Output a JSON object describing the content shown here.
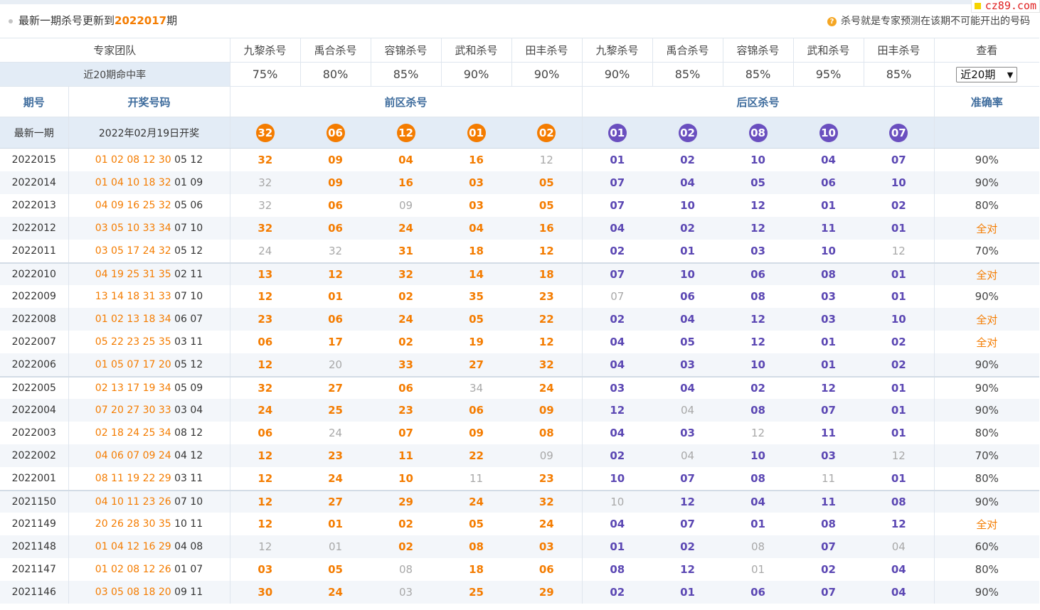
{
  "header": {
    "title_prefix": "最新一期杀号更新到",
    "title_issue": "2022017",
    "title_suffix": "期",
    "hint_icon": "question-icon",
    "hint_icon_glyph": "?",
    "hint": "杀号就是专家预测在该期不可能开出的号码",
    "logo": "cz89.com"
  },
  "expert_row": {
    "label": "专家团队",
    "experts": [
      "九黎杀号",
      "禹合杀号",
      "容锦杀号",
      "武和杀号",
      "田丰杀号",
      "九黎杀号",
      "禹合杀号",
      "容锦杀号",
      "武和杀号",
      "田丰杀号"
    ],
    "view_label": "查看"
  },
  "rate_row": {
    "label": "近20期命中率",
    "rates": [
      "75%",
      "80%",
      "85%",
      "90%",
      "90%",
      "90%",
      "85%",
      "85%",
      "95%",
      "85%"
    ],
    "select_value": "近20期",
    "select_arrow": "▼"
  },
  "section_header": {
    "issue": "期号",
    "draw": "开奖号码",
    "front": "前区杀号",
    "back": "后区杀号",
    "accuracy": "准确率"
  },
  "latest": {
    "label": "最新一期",
    "date": "2022年02月19日开奖",
    "front": [
      "32",
      "06",
      "12",
      "01",
      "02"
    ],
    "back": [
      "01",
      "02",
      "08",
      "10",
      "07"
    ]
  },
  "colors": {
    "front": "#f47c00",
    "back": "#6a4fbf",
    "fail": "#a8a8a8",
    "header_blue": "#3d6b9c"
  },
  "legend": {
    "F": "front-hit",
    "B": "back-hit",
    "x": "miss"
  },
  "rows": [
    {
      "issue": "2022015",
      "front": "01 02 08 12 30",
      "back": "05 12",
      "kills": [
        "32",
        "09",
        "04",
        "16",
        "12",
        "01",
        "02",
        "10",
        "04",
        "07"
      ],
      "status": "FFFFxBBBBB",
      "acc": "90%"
    },
    {
      "issue": "2022014",
      "front": "01 04 10 18 32",
      "back": "01 09",
      "kills": [
        "32",
        "09",
        "16",
        "03",
        "05",
        "07",
        "04",
        "05",
        "06",
        "10"
      ],
      "status": "xFFFFBBBBB",
      "acc": "90%"
    },
    {
      "issue": "2022013",
      "front": "04 09 16 25 32",
      "back": "05 06",
      "kills": [
        "32",
        "06",
        "09",
        "03",
        "05",
        "07",
        "10",
        "12",
        "01",
        "02"
      ],
      "status": "xFxFFBBBBB",
      "acc": "80%"
    },
    {
      "issue": "2022012",
      "front": "03 05 10 33 34",
      "back": "07 10",
      "kills": [
        "32",
        "06",
        "24",
        "04",
        "16",
        "04",
        "02",
        "12",
        "11",
        "01"
      ],
      "status": "FFFFFBBBBB",
      "acc": "全对"
    },
    {
      "issue": "2022011",
      "front": "03 05 17 24 32",
      "back": "05 12",
      "kills": [
        "24",
        "32",
        "31",
        "18",
        "12",
        "02",
        "01",
        "03",
        "10",
        "12"
      ],
      "status": "xxFFFBBBBx",
      "acc": "70%"
    },
    {
      "issue": "2022010",
      "front": "04 19 25 31 35",
      "back": "02 11",
      "kills": [
        "13",
        "12",
        "32",
        "14",
        "18",
        "07",
        "10",
        "06",
        "08",
        "01"
      ],
      "status": "FFFFFBBBBB",
      "acc": "全对"
    },
    {
      "issue": "2022009",
      "front": "13 14 18 31 33",
      "back": "07 10",
      "kills": [
        "12",
        "01",
        "02",
        "35",
        "23",
        "07",
        "06",
        "08",
        "03",
        "01"
      ],
      "status": "FFFFFxBBBB",
      "acc": "90%"
    },
    {
      "issue": "2022008",
      "front": "01 02 13 18 34",
      "back": "06 07",
      "kills": [
        "23",
        "06",
        "24",
        "05",
        "22",
        "02",
        "04",
        "12",
        "03",
        "10"
      ],
      "status": "FFFFFBBBBB",
      "acc": "全对"
    },
    {
      "issue": "2022007",
      "front": "05 22 23 25 35",
      "back": "03 11",
      "kills": [
        "06",
        "17",
        "02",
        "19",
        "12",
        "04",
        "05",
        "12",
        "01",
        "02"
      ],
      "status": "FFFFFBBBBB",
      "acc": "全对"
    },
    {
      "issue": "2022006",
      "front": "01 05 07 17 20",
      "back": "05 12",
      "kills": [
        "12",
        "20",
        "33",
        "27",
        "32",
        "04",
        "03",
        "10",
        "01",
        "02"
      ],
      "status": "FxFFFBBBBB",
      "acc": "90%"
    },
    {
      "issue": "2022005",
      "front": "02 13 17 19 34",
      "back": "05 09",
      "kills": [
        "32",
        "27",
        "06",
        "34",
        "24",
        "03",
        "04",
        "02",
        "12",
        "01"
      ],
      "status": "FFFxFBBBBB",
      "acc": "90%"
    },
    {
      "issue": "2022004",
      "front": "07 20 27 30 33",
      "back": "03 04",
      "kills": [
        "24",
        "25",
        "23",
        "06",
        "09",
        "12",
        "04",
        "08",
        "07",
        "01"
      ],
      "status": "FFFFFBxBBB",
      "acc": "90%"
    },
    {
      "issue": "2022003",
      "front": "02 18 24 25 34",
      "back": "08 12",
      "kills": [
        "06",
        "24",
        "07",
        "09",
        "08",
        "04",
        "03",
        "12",
        "11",
        "01"
      ],
      "status": "FxFFFBBxBB",
      "acc": "80%"
    },
    {
      "issue": "2022002",
      "front": "04 06 07 09 24",
      "back": "04 12",
      "kills": [
        "12",
        "23",
        "11",
        "22",
        "09",
        "02",
        "04",
        "10",
        "03",
        "12"
      ],
      "status": "FFFFxBxBBx",
      "acc": "70%"
    },
    {
      "issue": "2022001",
      "front": "08 11 19 22 29",
      "back": "03 11",
      "kills": [
        "12",
        "24",
        "10",
        "11",
        "23",
        "10",
        "07",
        "08",
        "11",
        "01"
      ],
      "status": "FFFxFBBBxB",
      "acc": "80%"
    },
    {
      "issue": "2021150",
      "front": "04 10 11 23 26",
      "back": "07 10",
      "kills": [
        "12",
        "27",
        "29",
        "24",
        "32",
        "10",
        "12",
        "04",
        "11",
        "08"
      ],
      "status": "FFFFFxBBBB",
      "acc": "90%"
    },
    {
      "issue": "2021149",
      "front": "20 26 28 30 35",
      "back": "10 11",
      "kills": [
        "12",
        "01",
        "02",
        "05",
        "24",
        "04",
        "07",
        "01",
        "08",
        "12"
      ],
      "status": "FFFFFBBBBB",
      "acc": "全对"
    },
    {
      "issue": "2021148",
      "front": "01 04 12 16 29",
      "back": "04 08",
      "kills": [
        "12",
        "01",
        "02",
        "08",
        "03",
        "01",
        "02",
        "08",
        "07",
        "04"
      ],
      "status": "xxFFFBBxBx",
      "acc": "60%"
    },
    {
      "issue": "2021147",
      "front": "01 02 08 12 26",
      "back": "01 07",
      "kills": [
        "03",
        "05",
        "08",
        "18",
        "06",
        "08",
        "12",
        "01",
        "02",
        "04"
      ],
      "status": "FFxFFBBxBB",
      "acc": "80%"
    },
    {
      "issue": "2021146",
      "front": "03 05 08 18 20",
      "back": "09 11",
      "kills": [
        "30",
        "24",
        "03",
        "25",
        "29",
        "02",
        "01",
        "06",
        "07",
        "04"
      ],
      "status": "FFxFFBBBBB",
      "acc": "90%"
    }
  ]
}
